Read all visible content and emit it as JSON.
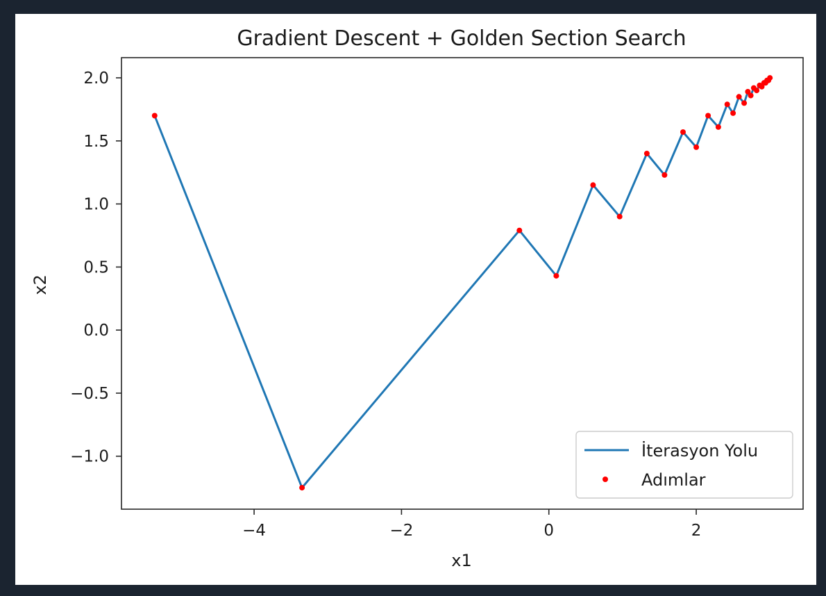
{
  "chart_data": {
    "type": "line",
    "title": "Gradient Descent + Golden Section Search",
    "xlabel": "x1",
    "ylabel": "x2",
    "xlim": [
      -5.8,
      3.45
    ],
    "ylim": [
      -1.42,
      2.16
    ],
    "xticks": [
      -4,
      -2,
      0,
      2
    ],
    "yticks": [
      2.0,
      1.5,
      1.0,
      0.5,
      0.0,
      -0.5,
      -1.0
    ],
    "xtick_labels": [
      "−4",
      "−2",
      "0",
      "2"
    ],
    "ytick_labels": [
      "2.0",
      "1.5",
      "1.0",
      "0.5",
      "0.0",
      "−0.5",
      "−1.0"
    ],
    "grid": false,
    "legend_position": "lower-right",
    "series": [
      {
        "name": "İterasyon Yolu",
        "style": "line",
        "color": "#1f77b4",
        "x": [
          -5.35,
          -3.35,
          -0.4,
          0.1,
          0.6,
          0.96,
          1.33,
          1.57,
          1.82,
          2.0,
          2.16,
          2.3,
          2.42,
          2.5,
          2.58,
          2.65,
          2.7,
          2.74,
          2.78,
          2.82,
          2.86,
          2.89,
          2.92,
          2.94,
          2.96,
          2.98,
          3.0
        ],
        "y": [
          1.7,
          -1.25,
          0.79,
          0.43,
          1.15,
          0.9,
          1.4,
          1.23,
          1.57,
          1.45,
          1.7,
          1.61,
          1.79,
          1.72,
          1.85,
          1.8,
          1.89,
          1.86,
          1.92,
          1.9,
          1.94,
          1.93,
          1.96,
          1.96,
          1.98,
          1.98,
          2.0
        ]
      },
      {
        "name": "Adımlar",
        "style": "scatter",
        "color": "#ff0000",
        "x": [
          -5.35,
          -3.35,
          -0.4,
          0.1,
          0.6,
          0.96,
          1.33,
          1.57,
          1.82,
          2.0,
          2.16,
          2.3,
          2.42,
          2.5,
          2.58,
          2.65,
          2.7,
          2.74,
          2.78,
          2.82,
          2.86,
          2.89,
          2.92,
          2.94,
          2.96,
          2.98,
          3.0
        ],
        "y": [
          1.7,
          -1.25,
          0.79,
          0.43,
          1.15,
          0.9,
          1.4,
          1.23,
          1.57,
          1.45,
          1.7,
          1.61,
          1.79,
          1.72,
          1.85,
          1.8,
          1.89,
          1.86,
          1.92,
          1.9,
          1.94,
          1.93,
          1.96,
          1.96,
          1.98,
          1.98,
          2.0
        ]
      }
    ]
  }
}
